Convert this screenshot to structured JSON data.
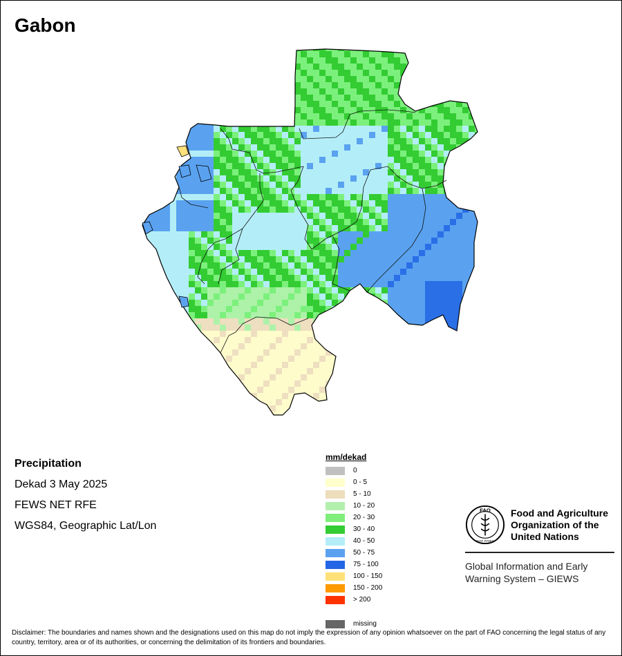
{
  "map": {
    "title": "Gabon",
    "type": "precipitation raster",
    "cell_colors": [
      "#7CF07C",
      "#33CC33",
      "#B3EEF8",
      "#5AA2F0",
      "#2A6FE6",
      "#EEDFC0",
      "#FFFCCC",
      "#ADF2A8",
      "#C0C0C0"
    ]
  },
  "info": {
    "heading": "Precipitation",
    "period": "Dekad 3 May 2025",
    "source": "FEWS NET RFE",
    "projection": "WGS84, Geographic Lat/Lon"
  },
  "legend": {
    "title": "mm/dekad",
    "items": [
      {
        "label": "0",
        "color": "#C0C0C0"
      },
      {
        "label": "0 - 5",
        "color": "#FFFFCC"
      },
      {
        "label": "5 - 10",
        "color": "#EEDDBB"
      },
      {
        "label": "10 - 20",
        "color": "#B3F0AE"
      },
      {
        "label": "20 - 30",
        "color": "#7FEE7A"
      },
      {
        "label": "30 - 40",
        "color": "#33CC33"
      },
      {
        "label": "40 - 50",
        "color": "#B3EEF8"
      },
      {
        "label": "50 - 75",
        "color": "#5AA2F0"
      },
      {
        "label": "75 - 100",
        "color": "#2266E6"
      },
      {
        "label": "100 - 150",
        "color": "#FFE17A"
      },
      {
        "label": "150 - 200",
        "color": "#FF9900"
      },
      {
        "label": "> 200",
        "color": "#FF3300"
      }
    ],
    "missing": {
      "label": "missing",
      "color": "#666666"
    }
  },
  "fao": {
    "name_lines": [
      "Food and Agriculture",
      "Organization of the",
      "United Nations"
    ],
    "giews_lines": [
      "Global Information and Early",
      "Warning System – GIEWS"
    ],
    "logo_text": "FAO",
    "logo_ring": "FIAT PANIS"
  },
  "disclaimer": "Disclaimer: The boundaries and names shown and the designations used on this map do not imply the expression of any opinion whatsoever on the part of FAO concerning the legal status of any country, territory, area or of its authorities, or concerning the delimitation of its frontiers and boundaries."
}
